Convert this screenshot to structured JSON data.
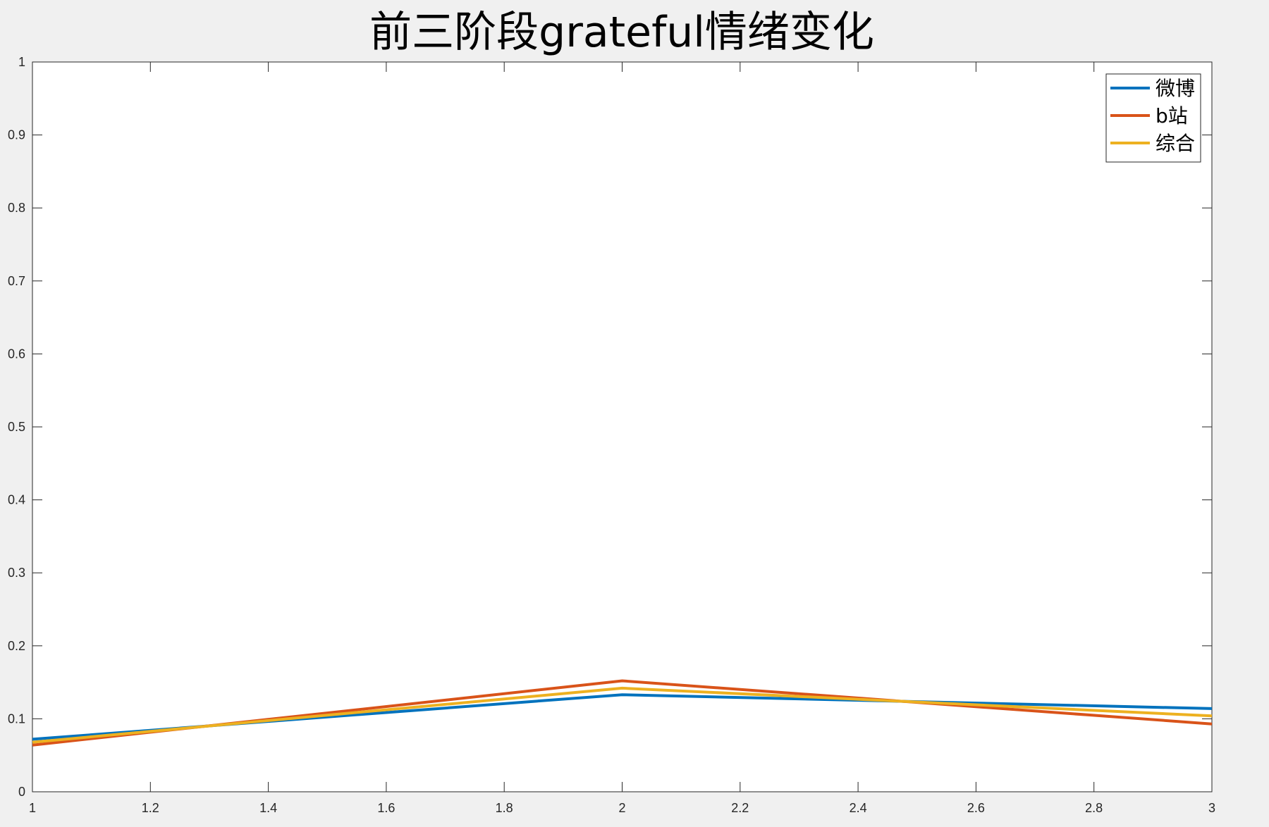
{
  "chart_data": {
    "type": "line",
    "title": "前三阶段grateful情绪变化",
    "xlabel": "",
    "ylabel": "",
    "xlim": [
      1,
      3
    ],
    "ylim": [
      0,
      1
    ],
    "x_ticks": [
      1,
      1.2,
      1.4,
      1.6,
      1.8,
      2,
      2.2,
      2.4,
      2.6,
      2.8,
      3
    ],
    "x_tick_labels": [
      "1",
      "1.2",
      "1.4",
      "1.6",
      "1.8",
      "2",
      "2.2",
      "2.4",
      "2.6",
      "2.8",
      "3"
    ],
    "y_ticks": [
      0,
      0.1,
      0.2,
      0.3,
      0.4,
      0.5,
      0.6,
      0.7,
      0.8,
      0.9,
      1
    ],
    "y_tick_labels": [
      "0",
      "0.1",
      "0.2",
      "0.3",
      "0.4",
      "0.5",
      "0.6",
      "0.7",
      "0.8",
      "0.9",
      "1"
    ],
    "grid": false,
    "legend_position": "top-right",
    "x": [
      1,
      2,
      3
    ],
    "series": [
      {
        "name": "微博",
        "color": "#0072BD",
        "values": [
          0.072,
          0.133,
          0.114
        ]
      },
      {
        "name": "b站",
        "color": "#D95319",
        "values": [
          0.064,
          0.152,
          0.093
        ]
      },
      {
        "name": "综合",
        "color": "#EDB120",
        "values": [
          0.068,
          0.142,
          0.104
        ]
      }
    ]
  }
}
